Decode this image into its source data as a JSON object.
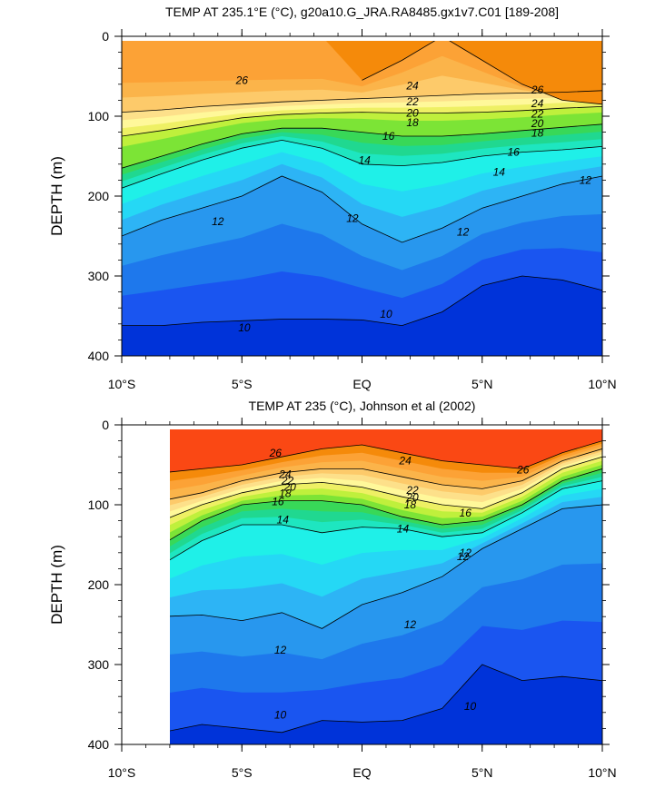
{
  "chart_data": [
    {
      "type": "contour",
      "title": "TEMP AT 235.1°E (°C), g20a10.G_JRA.RA8485.gx1v7.C01 [189-208]",
      "xlabel": "",
      "ylabel": "DEPTH (m)",
      "x_ticks": [
        "10°S",
        "5°S",
        "EQ",
        "5°N",
        "10°N"
      ],
      "x_range": [
        -10,
        10
      ],
      "y_ticks": [
        "0",
        "100",
        "200",
        "300",
        "400"
      ],
      "y_range": [
        0,
        400
      ],
      "y_inverted": true,
      "fill_colors": [
        "#0033d9",
        "#1a55f0",
        "#1e78ec",
        "#2897ee",
        "#2db4f5",
        "#25d8f5",
        "#1ff0e8",
        "#1ee6c0",
        "#20d890",
        "#38d858",
        "#7ce436",
        "#bff03c",
        "#eef064",
        "#fff89a",
        "#fde08a",
        "#fdca6a",
        "#fbb44a",
        "#fca236",
        "#f58a0a"
      ],
      "contour_labels": [
        "26",
        "24",
        "22",
        "20",
        "18",
        "16",
        "14",
        "12",
        "12",
        "12",
        "10",
        "10",
        "26",
        "24",
        "22",
        "20",
        "18",
        "16",
        "14",
        "12"
      ],
      "levels": [
        {
          "level": 26,
          "depths": [
            null,
            null,
            null,
            null,
            null,
            null,
            55,
            30,
            0,
            30,
            60,
            80,
            85
          ]
        },
        {
          "level": 24,
          "depths": [
            95,
            92,
            88,
            85,
            82,
            80,
            78,
            76,
            74,
            72,
            71,
            70,
            68
          ]
        },
        {
          "level": 20,
          "depths": [
            125,
            118,
            110,
            102,
            98,
            96,
            95,
            96,
            96,
            95,
            93,
            90,
            88
          ]
        },
        {
          "level": 16,
          "depths": [
            165,
            150,
            135,
            122,
            115,
            115,
            120,
            125,
            125,
            122,
            118,
            114,
            110
          ]
        },
        {
          "level": 14,
          "depths": [
            190,
            172,
            155,
            140,
            130,
            140,
            160,
            162,
            158,
            150,
            145,
            142,
            138
          ]
        },
        {
          "level": 12,
          "depths": [
            250,
            230,
            215,
            200,
            175,
            195,
            235,
            258,
            240,
            215,
            200,
            185,
            175
          ]
        },
        {
          "level": 10,
          "depths": [
            362,
            362,
            358,
            356,
            354,
            354,
            355,
            362,
            345,
            312,
            300,
            305,
            318
          ]
        }
      ]
    },
    {
      "type": "contour",
      "title": "TEMP AT 235 (°C), Johnson et al (2002)",
      "xlabel": "",
      "ylabel": "DEPTH (m)",
      "x_ticks": [
        "10°S",
        "5°S",
        "EQ",
        "5°N",
        "10°N"
      ],
      "x_range": [
        -10,
        10
      ],
      "y_ticks": [
        "0",
        "100",
        "200",
        "300",
        "400"
      ],
      "y_range": [
        0,
        400
      ],
      "y_inverted": true,
      "data_start_x": -8,
      "fill_colors": [
        "#0033d9",
        "#1a55f0",
        "#1e78ec",
        "#2897ee",
        "#2db4f5",
        "#25d8f5",
        "#1ff0e8",
        "#1ee6c0",
        "#20d890",
        "#38d858",
        "#7ce436",
        "#bff03c",
        "#eef064",
        "#fff89a",
        "#fde08a",
        "#fdca6a",
        "#fbb44a",
        "#fca236",
        "#f58a0a",
        "#fa4814"
      ],
      "contour_labels": [
        "26",
        "24",
        "22",
        "20",
        "18",
        "16",
        "14",
        "12",
        "12",
        "12",
        "10",
        "10",
        "26",
        "24",
        "22",
        "20",
        "18",
        "16",
        "14",
        "12"
      ],
      "levels": [
        {
          "level": 26,
          "depths": [
            null,
            60,
            55,
            50,
            40,
            30,
            25,
            35,
            45,
            50,
            55,
            35,
            20
          ]
        },
        {
          "level": 24,
          "depths": [
            null,
            95,
            85,
            70,
            60,
            55,
            55,
            65,
            75,
            80,
            70,
            45,
            30
          ]
        },
        {
          "level": 20,
          "depths": [
            null,
            120,
            100,
            85,
            75,
            72,
            78,
            90,
            100,
            105,
            85,
            55,
            40
          ]
        },
        {
          "level": 16,
          "depths": [
            null,
            150,
            120,
            100,
            95,
            95,
            100,
            115,
            125,
            120,
            100,
            70,
            55
          ]
        },
        {
          "level": 14,
          "depths": [
            null,
            175,
            145,
            125,
            125,
            135,
            128,
            130,
            140,
            135,
            110,
            80,
            70
          ]
        },
        {
          "level": 12,
          "depths": [
            null,
            240,
            238,
            245,
            235,
            255,
            225,
            210,
            190,
            155,
            130,
            105,
            100
          ]
        },
        {
          "level": 10,
          "depths": [
            null,
            385,
            375,
            380,
            385,
            370,
            372,
            370,
            355,
            300,
            320,
            315,
            320
          ]
        }
      ]
    }
  ]
}
